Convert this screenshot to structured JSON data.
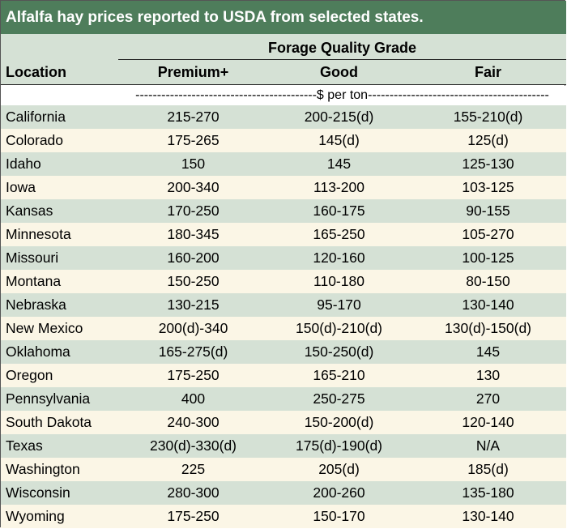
{
  "title": "Alfalfa hay prices reported to USDA from selected states.",
  "header": {
    "group_label": "Forage Quality Grade",
    "location_label": "Location",
    "columns": [
      "Premium+",
      "Good",
      "Fair"
    ],
    "unit_text": "------------------------------------------$ per ton------------------------------------------"
  },
  "chart_data": {
    "type": "table",
    "title": "Alfalfa hay prices reported to USDA from selected states.",
    "columns": [
      "Location",
      "Premium+",
      "Good",
      "Fair"
    ],
    "unit": "$ per ton",
    "rows": [
      [
        "California",
        "215-270",
        "200-215(d)",
        "155-210(d)"
      ],
      [
        "Colorado",
        "175-265",
        "145(d)",
        "125(d)"
      ],
      [
        "Idaho",
        "150",
        "145",
        "125-130"
      ],
      [
        "Iowa",
        "200-340",
        "113-200",
        "103-125"
      ],
      [
        "Kansas",
        "170-250",
        "160-175",
        "90-155"
      ],
      [
        "Minnesota",
        "180-345",
        "165-250",
        "105-270"
      ],
      [
        "Missouri",
        "160-200",
        "120-160",
        "100-125"
      ],
      [
        "Montana",
        "150-250",
        "110-180",
        "80-150"
      ],
      [
        "Nebraska",
        "130-215",
        "95-170",
        "130-140"
      ],
      [
        "New Mexico",
        "200(d)-340",
        "150(d)-210(d)",
        "130(d)-150(d)"
      ],
      [
        "Oklahoma",
        "165-275(d)",
        "150-250(d)",
        "145"
      ],
      [
        "Oregon",
        "175-250",
        "165-210",
        "130"
      ],
      [
        "Pennsylvania",
        "400",
        "250-275",
        "270"
      ],
      [
        "South Dakota",
        "240-300",
        "150-200(d)",
        "120-140"
      ],
      [
        "Texas",
        "230(d)-330(d)",
        "175(d)-190(d)",
        "N/A"
      ],
      [
        "Washington",
        "225",
        "205(d)",
        "185(d)"
      ],
      [
        "Wisconsin",
        "280-300",
        "200-260",
        "135-180"
      ],
      [
        "Wyoming",
        "175-250",
        "150-170",
        "130-140"
      ]
    ]
  },
  "colors": {
    "title_bg": "#4e7d5b",
    "title_text": "#ffffff",
    "band_green": "#d5e1d5",
    "band_cream": "#fbf6e6"
  }
}
